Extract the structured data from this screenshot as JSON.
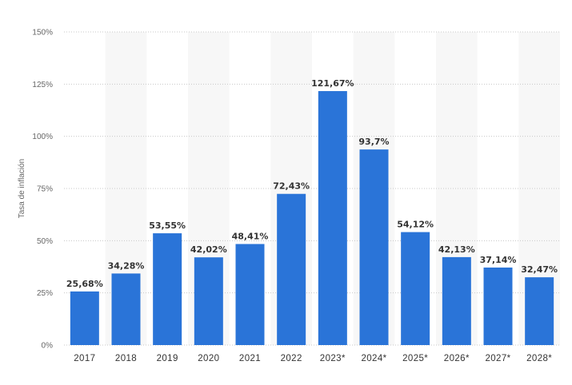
{
  "chart_data": {
    "type": "bar",
    "categories": [
      "2017",
      "2018",
      "2019",
      "2020",
      "2021",
      "2022",
      "2023*",
      "2024*",
      "2025*",
      "2026*",
      "2027*",
      "2028*"
    ],
    "values": [
      25.68,
      34.28,
      53.55,
      42.02,
      48.41,
      72.43,
      121.67,
      93.7,
      54.12,
      42.13,
      37.14,
      32.47
    ],
    "value_labels": [
      "25,68%",
      "34,28%",
      "53,55%",
      "42,02%",
      "48,41%",
      "72,43%",
      "121,67%",
      "93,7%",
      "54,12%",
      "42,13%",
      "37,14%",
      "32,47%"
    ],
    "title": "",
    "xlabel": "",
    "ylabel": "Tasa de inflación",
    "ylim": [
      0,
      150
    ],
    "yticks": [
      0,
      25,
      50,
      75,
      100,
      125,
      150
    ],
    "ytick_labels": [
      "0%",
      "25%",
      "50%",
      "75%",
      "100%",
      "125%",
      "150%"
    ],
    "grid": true,
    "legend": "none",
    "colors": {
      "bar": "#2a74d8",
      "band": "#f7f7f7",
      "grid": "#c8c8c8"
    }
  }
}
